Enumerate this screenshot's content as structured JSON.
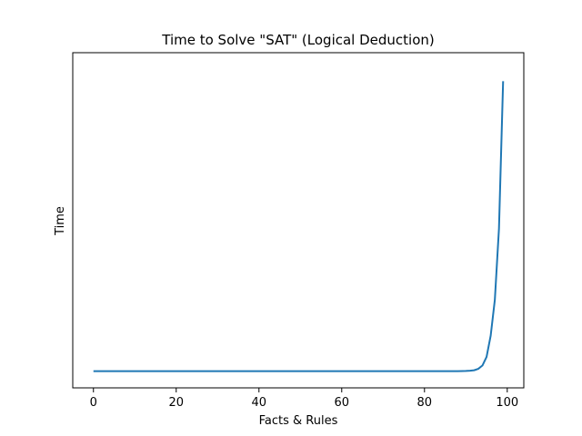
{
  "chart_data": {
    "type": "line",
    "title": "Time to Solve \"SAT\" (Logical Deduction)",
    "xlabel": "Facts & Rules",
    "ylabel": "Time",
    "xlim": [
      -5,
      104
    ],
    "ylim": [
      -0.35,
      6.7
    ],
    "x_ticks": [
      0,
      20,
      40,
      60,
      80,
      100
    ],
    "y_ticks": [],
    "grid": false,
    "legend": "none",
    "series": [
      {
        "color": "#1f77b4",
        "x": [
          0,
          85,
          88,
          90,
          91,
          92,
          93,
          94,
          95,
          96,
          97,
          98,
          99
        ],
        "y": [
          0,
          0,
          0.002,
          0.005,
          0.01,
          0.02,
          0.05,
          0.12,
          0.3,
          0.75,
          1.5,
          3.0,
          6.1
        ]
      }
    ]
  }
}
